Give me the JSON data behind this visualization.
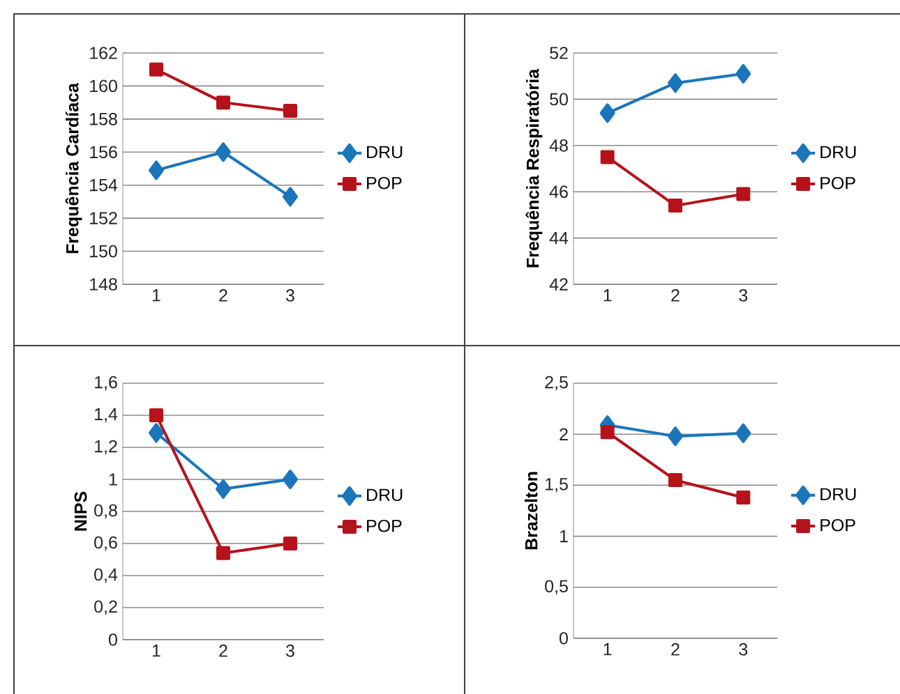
{
  "chart_data": [
    {
      "type": "line",
      "ylabel": "Frequência Cardíaca",
      "categories": [
        "1",
        "2",
        "3"
      ],
      "series": [
        {
          "name": "DRU",
          "color": "#1b75bb",
          "marker": "diamond",
          "values": [
            154.9,
            156.0,
            153.3
          ]
        },
        {
          "name": "POP",
          "color": "#b5121b",
          "marker": "square",
          "values": [
            161.0,
            159.0,
            158.5
          ]
        }
      ],
      "ylim": [
        148,
        162
      ],
      "yticks": [
        148,
        150,
        152,
        154,
        156,
        158,
        160,
        162
      ],
      "grid": "y",
      "legend": "right"
    },
    {
      "type": "line",
      "ylabel": "Frequência Respiratória",
      "categories": [
        "1",
        "2",
        "3"
      ],
      "series": [
        {
          "name": "DRU",
          "color": "#1b75bb",
          "marker": "diamond",
          "values": [
            49.4,
            50.7,
            51.1
          ]
        },
        {
          "name": "POP",
          "color": "#b5121b",
          "marker": "square",
          "values": [
            47.5,
            45.4,
            45.9
          ]
        }
      ],
      "ylim": [
        42,
        52
      ],
      "yticks": [
        42,
        44,
        46,
        48,
        50,
        52
      ],
      "grid": "y",
      "legend": "right"
    },
    {
      "type": "line",
      "ylabel": "NIPS",
      "categories": [
        "1",
        "2",
        "3"
      ],
      "series": [
        {
          "name": "DRU",
          "color": "#1b75bb",
          "marker": "diamond",
          "values": [
            1.29,
            0.94,
            1.0
          ]
        },
        {
          "name": "POP",
          "color": "#b5121b",
          "marker": "square",
          "values": [
            1.4,
            0.54,
            0.6
          ]
        }
      ],
      "ylim": [
        0,
        1.6
      ],
      "yticks": [
        0,
        {
          "value": 0.2,
          "label": "0,2"
        },
        {
          "value": 0.4,
          "label": "0,4"
        },
        {
          "value": 0.6,
          "label": "0,6"
        },
        {
          "value": 0.8,
          "label": "0,8"
        },
        1,
        {
          "value": 1.2,
          "label": "1,2"
        },
        {
          "value": 1.4,
          "label": "1,4"
        },
        {
          "value": 1.6,
          "label": "1,6"
        }
      ],
      "grid": "y",
      "legend": "right"
    },
    {
      "type": "line",
      "ylabel": "Brazelton",
      "categories": [
        "1",
        "2",
        "3"
      ],
      "series": [
        {
          "name": "DRU",
          "color": "#1b75bb",
          "marker": "diamond",
          "values": [
            2.09,
            1.98,
            2.01
          ]
        },
        {
          "name": "POP",
          "color": "#b5121b",
          "marker": "square",
          "values": [
            2.02,
            1.55,
            1.38
          ]
        }
      ],
      "ylim": [
        0,
        2.5
      ],
      "yticks": [
        0,
        {
          "value": 0.5,
          "label": "0,5"
        },
        1,
        {
          "value": 1.5,
          "label": "1,5"
        },
        2,
        {
          "value": 2.5,
          "label": "2,5"
        }
      ],
      "grid": "y",
      "legend": "right"
    }
  ]
}
